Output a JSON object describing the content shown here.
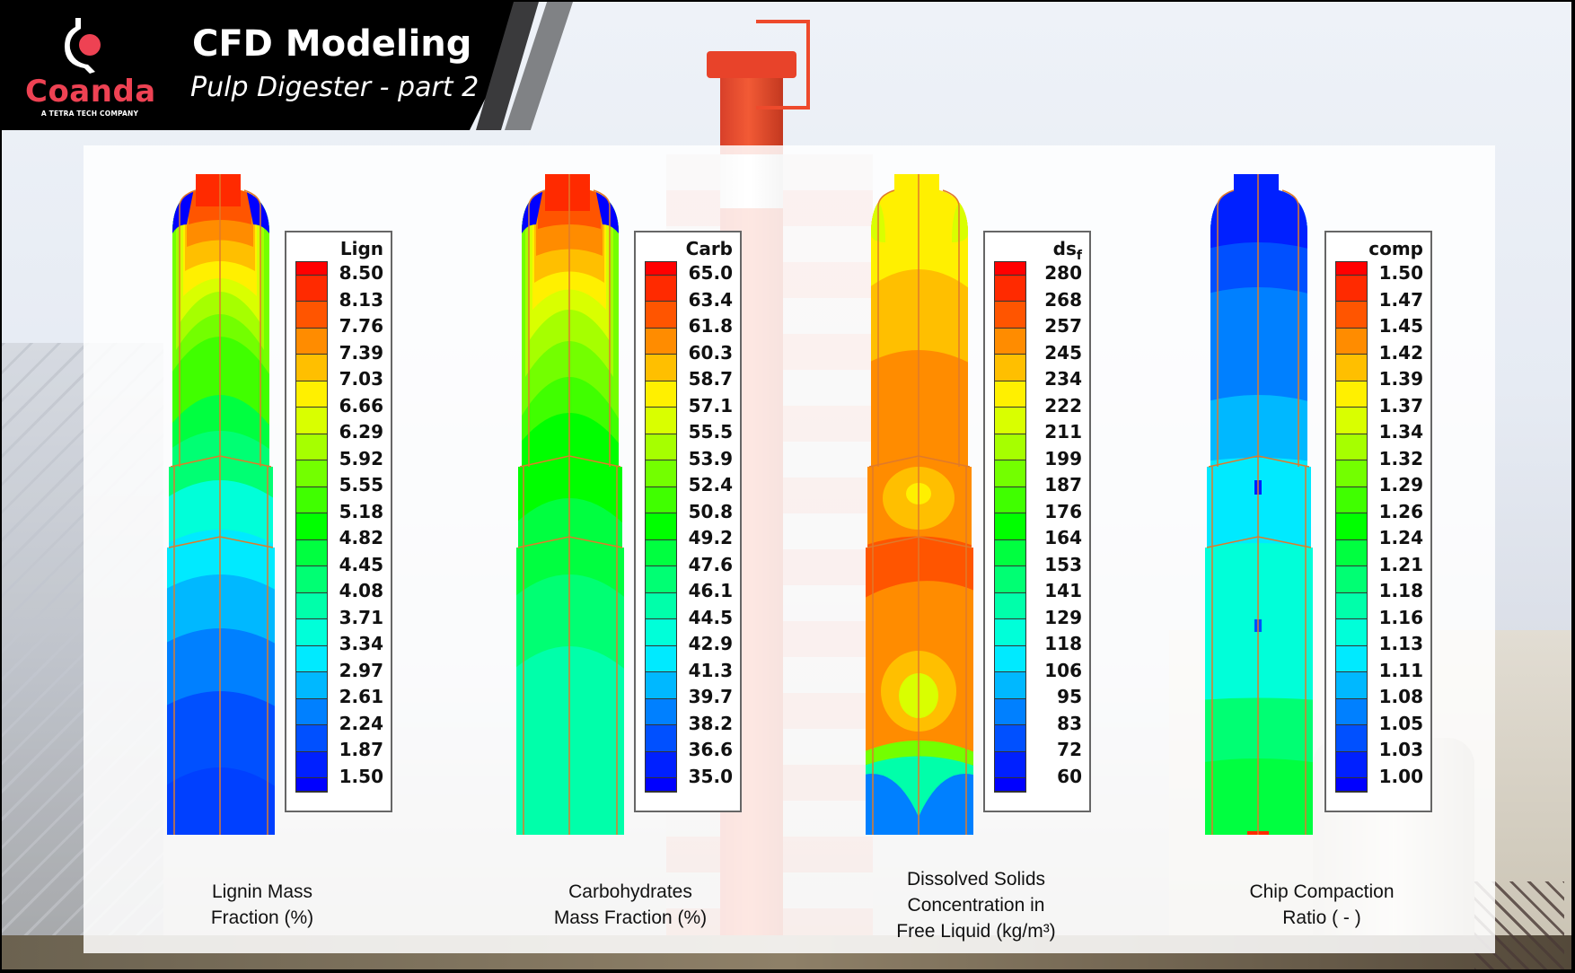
{
  "header": {
    "logo": {
      "name": "Coanda",
      "tagline": "A TETRA TECH COMPANY",
      "icon": "coanda-logo-icon",
      "brand_color": "#ee4253"
    },
    "title": "CFD Modeling",
    "subtitle": "Pulp Digester - part 2"
  },
  "palette": [
    "#ff0000",
    "#ff2a00",
    "#ff5500",
    "#ff8c00",
    "#ffbf00",
    "#fff000",
    "#d9ff00",
    "#a6ff00",
    "#73ff00",
    "#40ff00",
    "#00ff00",
    "#00ff40",
    "#00ff73",
    "#00ffaa",
    "#00ffd9",
    "#00eaff",
    "#00b8ff",
    "#0080ff",
    "#0050ff",
    "#0020ff",
    "#0000ff"
  ],
  "panels": [
    {
      "id": "lignin",
      "legend_title": "Lign",
      "legend_values": [
        "8.50",
        "8.13",
        "7.76",
        "7.39",
        "7.03",
        "6.66",
        "6.29",
        "5.92",
        "5.55",
        "5.18",
        "4.82",
        "4.45",
        "4.08",
        "3.71",
        "3.34",
        "2.97",
        "2.61",
        "2.24",
        "1.87",
        "1.50"
      ],
      "caption_line1": "Lignin Mass",
      "caption_line2": "Fraction (%)"
    },
    {
      "id": "carbohydrates",
      "legend_title": "Carb",
      "legend_values": [
        "65.0",
        "63.4",
        "61.8",
        "60.3",
        "58.7",
        "57.1",
        "55.5",
        "53.9",
        "52.4",
        "50.8",
        "49.2",
        "47.6",
        "46.1",
        "44.5",
        "42.9",
        "41.3",
        "39.7",
        "38.2",
        "36.6",
        "35.0"
      ],
      "caption_line1": "Carbohydrates",
      "caption_line2": "Mass Fraction (%)"
    },
    {
      "id": "dissolved-solids",
      "legend_title": "ds",
      "legend_title_subscript": "f",
      "legend_values": [
        "280",
        "268",
        "257",
        "245",
        "234",
        "222",
        "211",
        "199",
        "187",
        "176",
        "164",
        "153",
        "141",
        "129",
        "118",
        "106",
        "95",
        "83",
        "72",
        "60"
      ],
      "caption_line1": "Dissolved Solids",
      "caption_line2": "Concentration in",
      "caption_line3": "Free Liquid (kg/m³)"
    },
    {
      "id": "chip-compaction",
      "legend_title": "comp",
      "legend_values": [
        "1.50",
        "1.47",
        "1.45",
        "1.42",
        "1.39",
        "1.37",
        "1.34",
        "1.32",
        "1.29",
        "1.26",
        "1.24",
        "1.21",
        "1.18",
        "1.16",
        "1.13",
        "1.11",
        "1.08",
        "1.05",
        "1.03",
        "1.00"
      ],
      "caption_line1": "Chip Compaction",
      "caption_line2": "Ratio ( - )"
    }
  ]
}
